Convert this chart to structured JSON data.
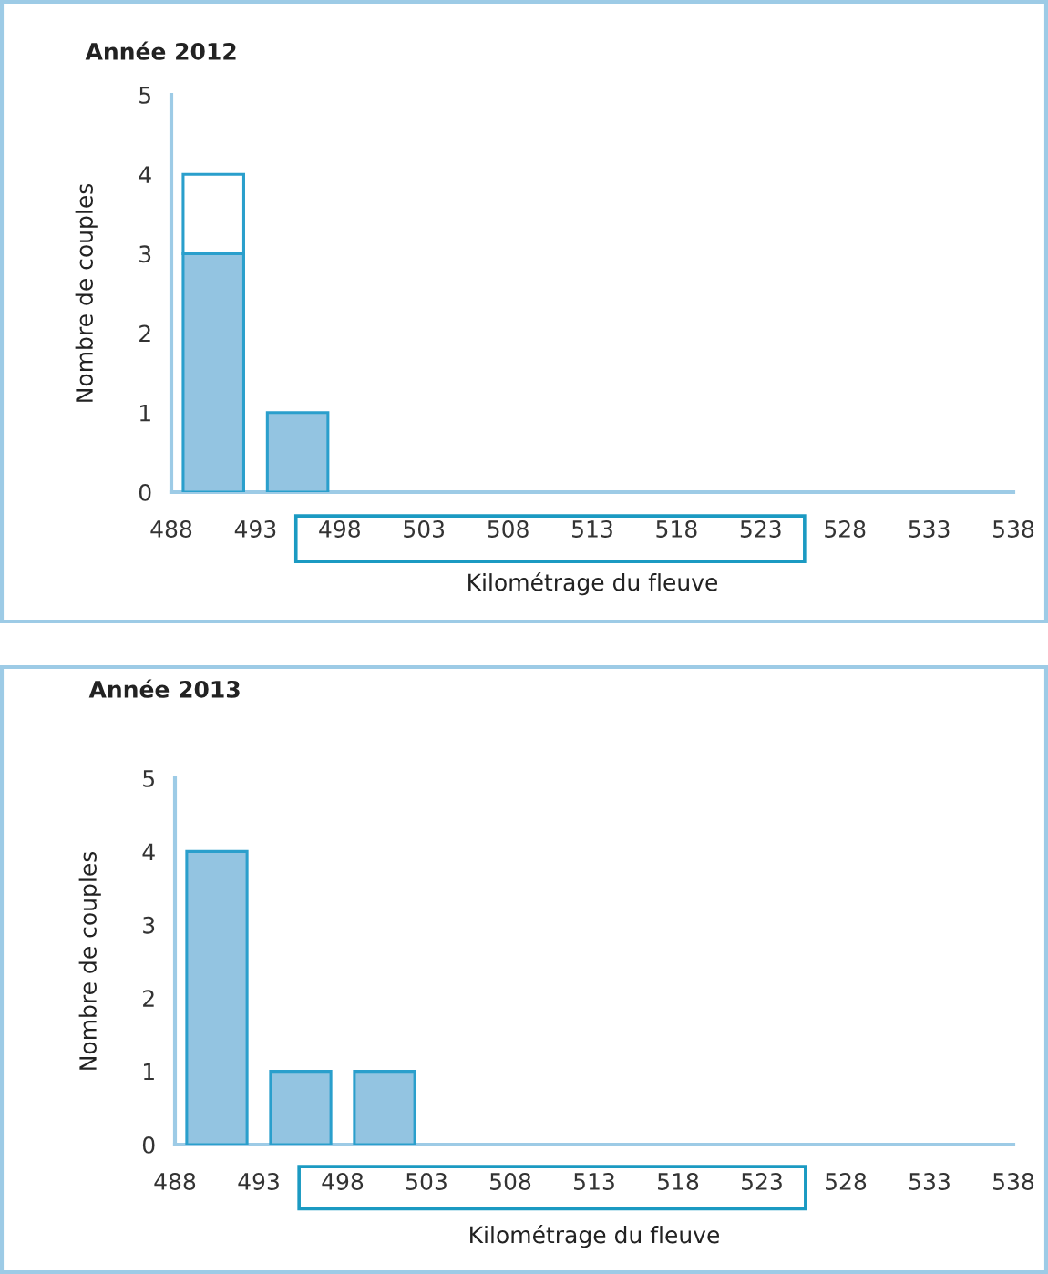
{
  "chart_data": [
    {
      "type": "bar",
      "title": "Année 2012",
      "xlabel": "Kilométrage du fleuve",
      "ylabel": "Nombre de couples",
      "x": [
        490.5,
        495.5
      ],
      "stacked": true,
      "series": [
        {
          "color": "#93c4e1",
          "values": [
            3,
            1
          ]
        },
        {
          "color": "#ffffff",
          "values": [
            1,
            null
          ]
        }
      ],
      "xlim": [
        488,
        538
      ],
      "xticks": [
        488,
        493,
        498,
        503,
        508,
        513,
        518,
        523,
        528,
        533,
        538
      ],
      "ylim": [
        0,
        5
      ],
      "yticks": [
        0,
        1,
        2,
        3,
        4,
        5
      ],
      "grid": false,
      "legend": false
    },
    {
      "type": "bar",
      "title": "Année 2013",
      "xlabel": "Kilométrage du fleuve",
      "ylabel": "Nombre de couples",
      "x": [
        490.5,
        495.5,
        500.5
      ],
      "stacked": true,
      "series": [
        {
          "color": "#93c4e1",
          "values": [
            4,
            1,
            1
          ]
        }
      ],
      "xlim": [
        488,
        538
      ],
      "xticks": [
        488,
        493,
        498,
        503,
        508,
        513,
        518,
        523,
        528,
        533,
        538
      ],
      "ylim": [
        0,
        5
      ],
      "yticks": [
        0,
        1,
        2,
        3,
        4,
        5
      ],
      "grid": false,
      "legend": false
    }
  ]
}
